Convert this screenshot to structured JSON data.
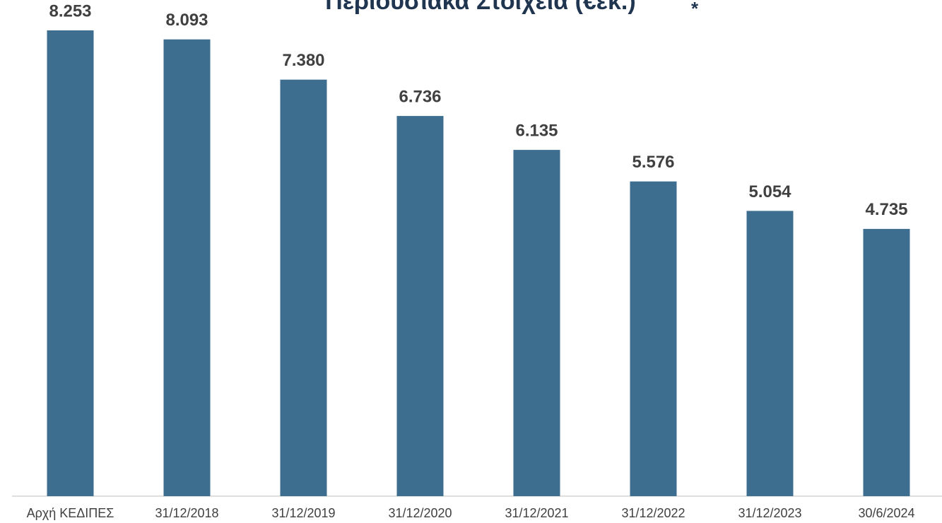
{
  "chart_data": {
    "type": "bar",
    "title": "Περιουσιακά Στοιχεία (€εκ.)",
    "title_note": "*",
    "categories": [
      "Αρχή ΚΕΔΙΠΕΣ",
      "31/12/2018",
      "31/12/2019",
      "31/12/2020",
      "31/12/2021",
      "31/12/2022",
      "31/12/2023",
      "30/6/2024"
    ],
    "values": [
      8253,
      8093,
      7380,
      6736,
      6135,
      5576,
      5054,
      4735
    ],
    "value_labels": [
      "8.253",
      "8.093",
      "7.380",
      "6.736",
      "6.135",
      "5.576",
      "5.054",
      "4.735"
    ],
    "color": "#3d6e8f",
    "ylim": [
      0,
      9000
    ]
  }
}
